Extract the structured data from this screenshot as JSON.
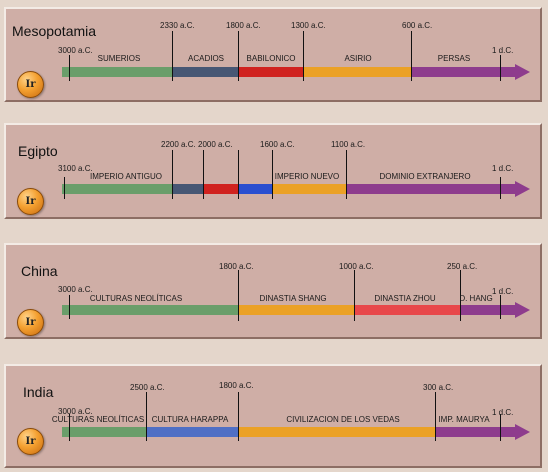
{
  "mesopotamia": {
    "title": "Mesopotamia",
    "button": "Ir",
    "dates": [
      "3000 a.C.",
      "2330 a.C.",
      "1800 a.C.",
      "1300 a.C.",
      "600 a.C.",
      "1 d.C."
    ],
    "periods": [
      "SUMERIOS",
      "ACADIOS",
      "BABILONICO",
      "ASIRIO",
      "PERSAS"
    ]
  },
  "egipto": {
    "title": "Egipto",
    "button": "Ir",
    "dates": [
      "3100 a.C.",
      "2200 a.C.",
      "2000 a.C.",
      "1600 a.C.",
      "1100 a.C.",
      "1 d.C."
    ],
    "periods": [
      "IMPERIO ANTIGUO",
      "IMPERIO NUEVO",
      "DOMINIO EXTRANJERO"
    ]
  },
  "china": {
    "title": "China",
    "button": "Ir",
    "dates": [
      "3000 a.C.",
      "1800 a.C.",
      "1000 a.C.",
      "250 a.C.",
      "1 d.C."
    ],
    "periods": [
      "CULTURAS NEOLÍTICAS",
      "DINASTIA SHANG",
      "DINASTIA ZHOU",
      "D. HANG"
    ]
  },
  "india": {
    "title": "India",
    "button": "Ir",
    "dates": [
      "3000 a.C.",
      "2500 a.C.",
      "1800 a.C.",
      "300 a.C.",
      "1 d.C."
    ],
    "periods": [
      "CULTURAS NEOLÍTICAS",
      "CULTURA HARAPPA",
      "CIVILIZACION DE LOS VEDAS",
      "IMP. MAURYA"
    ]
  },
  "colors": {
    "green": "#6a9e6a",
    "navy": "#475774",
    "red": "#d0221f",
    "blue": "#2a4fd0",
    "orange": "#eba126",
    "purple": "#8e3c8d",
    "salmon": "#e8474a",
    "steelblue": "#4f6fc5"
  }
}
